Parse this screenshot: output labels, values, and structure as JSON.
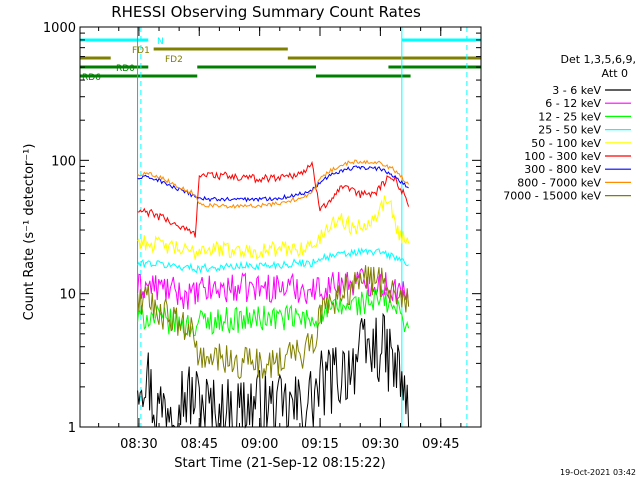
{
  "chart_data": {
    "type": "line",
    "title": "RHESSI Observing Summary Count Rates",
    "xlabel": "Start Time (21-Sep-12 08:15:22)",
    "ylabel": "Count Rate (s⁻¹ detector⁻¹)",
    "y_scale": "log",
    "ylim": [
      1,
      1000
    ],
    "y_ticks": [
      1,
      10,
      100,
      1000
    ],
    "y_tick_labels": [
      "1",
      "10",
      "100",
      "1000"
    ],
    "xlim": [
      "08:15:22",
      "09:55:00"
    ],
    "x_ticks": [
      "08:30",
      "08:45",
      "09:00",
      "09:15",
      "09:30",
      "09:45"
    ],
    "footer": "19-Oct-2021 03:42",
    "legend_header": [
      "Det 1,3,5,6,9,",
      "Att 0"
    ],
    "legend_position": "right",
    "flags": [
      {
        "label": "N",
        "color": "#00ffff",
        "segments": [
          [
            "08:15:22",
            "08:32:20"
          ],
          [
            "09:35:20",
            "09:55:00"
          ]
        ]
      },
      {
        "label": "FD1",
        "color": "#808000",
        "segments": [
          [
            "08:33:40",
            "09:07:00"
          ]
        ]
      },
      {
        "label": "FD2",
        "color": "#808000",
        "segments": [
          [
            "08:15:22",
            "08:23:00"
          ],
          [
            "09:07:00",
            "09:55:00"
          ]
        ]
      },
      {
        "label": "RD0",
        "color": "#008000",
        "segments": [
          [
            "08:15:22",
            "08:32:20"
          ],
          [
            "08:44:30",
            "09:14:00"
          ],
          [
            "09:32:00",
            "09:55:00"
          ]
        ]
      },
      {
        "label": "RD6",
        "color": "#008000",
        "segments": [
          [
            "08:15:22",
            "08:44:30"
          ],
          [
            "09:14:00",
            "09:37:30"
          ]
        ]
      }
    ],
    "vlines": [
      {
        "time": "08:30:30",
        "style": "dashed",
        "color": "#00ffff"
      },
      {
        "time": "09:35:20",
        "style": "solid",
        "color": "#00ffff"
      },
      {
        "time": "09:51:30",
        "style": "dashed",
        "color": "#00ffff"
      },
      {
        "time": "08:29:40",
        "style": "solid",
        "color": "#00c0c0"
      }
    ],
    "series": [
      {
        "name": "3 - 6 keV",
        "color": "#000000",
        "x": [
          "08:29:40",
          "08:32",
          "08:34",
          "08:40",
          "08:45",
          "08:50",
          "08:55",
          "09:00",
          "09:05",
          "09:10",
          "09:13",
          "09:15",
          "09:20",
          "09:25",
          "09:30",
          "09:33",
          "09:36",
          "09:37"
        ],
        "y": [
          2.5,
          2.6,
          1.3,
          1.8,
          1.6,
          1.2,
          1.4,
          1.5,
          1.3,
          1.4,
          1.6,
          2.0,
          2.5,
          3.5,
          4.0,
          3.0,
          2.0,
          1.0
        ]
      },
      {
        "name": "6 - 12 keV",
        "color": "#ff00ff",
        "x": [
          "08:29:40",
          "08:32",
          "08:36",
          "08:40",
          "08:44",
          "08:45",
          "08:50",
          "08:55",
          "09:00",
          "09:05",
          "09:10",
          "09:13",
          "09:15",
          "09:20",
          "09:25",
          "09:30",
          "09:33",
          "09:36",
          "09:37"
        ],
        "y": [
          11.0,
          11.5,
          11.0,
          10.0,
          9.5,
          10.5,
          10.8,
          11.0,
          11.0,
          11.2,
          11.0,
          10.5,
          11.0,
          12.0,
          12.5,
          12.0,
          11.0,
          9.5,
          8.0
        ]
      },
      {
        "name": "12 - 25 keV",
        "color": "#00ff00",
        "x": [
          "08:29:40",
          "08:32",
          "08:36",
          "08:40",
          "08:44",
          "08:45",
          "08:50",
          "08:55",
          "09:00",
          "09:05",
          "09:10",
          "09:13",
          "09:15",
          "09:20",
          "09:25",
          "09:30",
          "09:33",
          "09:36",
          "09:37"
        ],
        "y": [
          6.5,
          6.8,
          6.3,
          6.0,
          5.6,
          6.2,
          6.3,
          6.4,
          6.5,
          6.6,
          6.5,
          6.2,
          7.0,
          7.8,
          8.5,
          9.0,
          8.0,
          6.5,
          5.5
        ]
      },
      {
        "name": "25 - 50 keV",
        "color": "#00ffff",
        "x": [
          "08:29:40",
          "08:32",
          "08:36",
          "08:40",
          "08:44",
          "08:45",
          "08:50",
          "08:55",
          "09:00",
          "09:05",
          "09:10",
          "09:13",
          "09:15",
          "09:20",
          "09:25",
          "09:30",
          "09:33",
          "09:36",
          "09:37"
        ],
        "y": [
          16.5,
          17.0,
          16.5,
          16.0,
          15.5,
          15.5,
          15.8,
          16.0,
          16.2,
          16.5,
          17.0,
          17.0,
          18.5,
          19.5,
          20.5,
          20.5,
          19.0,
          17.5,
          16.5
        ]
      },
      {
        "name": "50 - 100 keV",
        "color": "#ffff00",
        "x": [
          "08:29:40",
          "08:32",
          "08:36",
          "08:40",
          "08:44",
          "08:45",
          "08:50",
          "08:55",
          "09:00",
          "09:05",
          "09:10",
          "09:13",
          "09:15",
          "09:18",
          "09:20",
          "09:23",
          "09:26",
          "09:29",
          "09:32",
          "09:33",
          "09:34",
          "09:36",
          "09:37"
        ],
        "y": [
          25.0,
          24.0,
          23.0,
          21.5,
          20.0,
          22.0,
          21.5,
          21.0,
          21.0,
          21.5,
          22.0,
          22.5,
          26.0,
          34.0,
          37.0,
          31.0,
          33.0,
          40.0,
          53.0,
          42.0,
          30.0,
          26.0,
          24.0
        ]
      },
      {
        "name": "100 - 300 keV",
        "color": "#ff0000",
        "x": [
          "08:29:40",
          "08:32",
          "08:36",
          "08:40",
          "08:44",
          "08:45",
          "08:50",
          "08:55",
          "09:00",
          "09:05",
          "09:10",
          "09:12",
          "09:13",
          "09:15",
          "09:18",
          "09:20",
          "09:22",
          "09:25",
          "09:29",
          "09:32",
          "09:34",
          "09:36",
          "09:37"
        ],
        "y": [
          41.0,
          41.0,
          37.0,
          32.0,
          28.0,
          78.0,
          77.0,
          74.0,
          73.0,
          75.0,
          80.0,
          86.0,
          92.0,
          44.0,
          52.0,
          60.0,
          61.0,
          55.0,
          58.0,
          75.0,
          70.0,
          55.0,
          45.0
        ]
      },
      {
        "name": "300 - 800 keV",
        "color": "#0000ff",
        "x": [
          "08:29:40",
          "08:32",
          "08:35",
          "08:38",
          "08:41",
          "08:44",
          "08:45",
          "08:48",
          "08:52",
          "08:56",
          "09:00",
          "09:04",
          "09:08",
          "09:11",
          "09:13",
          "09:15",
          "09:18",
          "09:21",
          "09:24",
          "09:27",
          "09:30",
          "09:33",
          "09:35",
          "09:37"
        ],
        "y": [
          73.0,
          75.0,
          71.0,
          64.0,
          58.0,
          54.0,
          52.0,
          51.0,
          51.0,
          51.0,
          51.0,
          52.0,
          54.0,
          57.0,
          60.0,
          69.0,
          79.0,
          85.0,
          88.0,
          88.0,
          86.0,
          78.0,
          70.0,
          62.0
        ]
      },
      {
        "name": "800 - 7000 keV",
        "color": "#ff8c00",
        "x": [
          "08:29:40",
          "08:32",
          "08:35",
          "08:38",
          "08:41",
          "08:44",
          "08:45",
          "08:48",
          "08:52",
          "08:56",
          "09:00",
          "09:04",
          "09:08",
          "09:11",
          "09:13",
          "09:15",
          "09:18",
          "09:21",
          "09:24",
          "09:27",
          "09:30",
          "09:33",
          "09:35",
          "09:37"
        ],
        "y": [
          78.0,
          80.0,
          76.0,
          68.0,
          61.0,
          56.0,
          47.0,
          46.0,
          45.0,
          45.0,
          46.0,
          47.0,
          50.0,
          54.0,
          56.0,
          73.0,
          85.0,
          94.0,
          98.0,
          98.0,
          95.0,
          87.0,
          76.0,
          66.0
        ]
      },
      {
        "name": "7000 - 15000 keV",
        "color": "#808000",
        "x": [
          "08:29:40",
          "08:32",
          "08:35",
          "08:38",
          "08:41",
          "08:44",
          "08:45",
          "08:50",
          "08:55",
          "09:00",
          "09:05",
          "09:10",
          "09:13",
          "09:15",
          "09:18",
          "09:21",
          "09:24",
          "09:27",
          "09:30",
          "09:33",
          "09:35",
          "09:37"
        ],
        "y": [
          9.0,
          9.0,
          7.5,
          6.5,
          5.5,
          5.0,
          3.0,
          3.2,
          3.0,
          3.0,
          3.2,
          3.5,
          4.0,
          7.0,
          9.0,
          10.5,
          11.5,
          12.5,
          12.5,
          11.0,
          9.5,
          8.0
        ]
      }
    ]
  }
}
